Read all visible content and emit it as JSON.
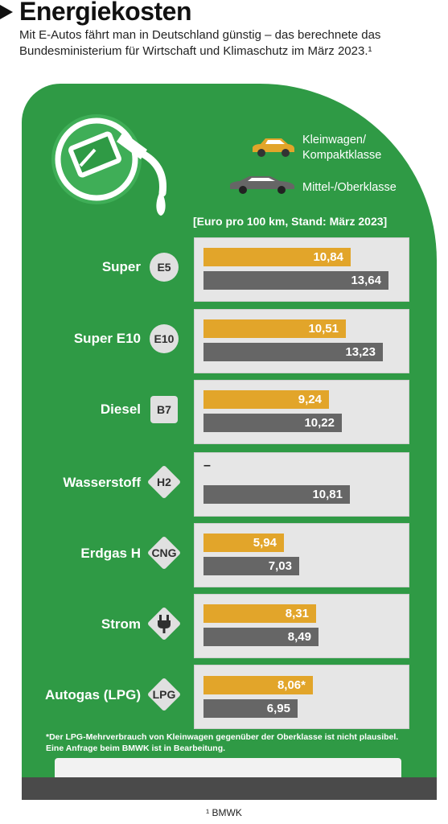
{
  "header": {
    "title": "Energiekosten",
    "subtitle": "Mit E-Autos fährt man in Deutschland günstig – das berechnete das Bundesministerium für Wirtschaft und Klimaschutz im März 2023.¹"
  },
  "legend": {
    "small": "Kleinwagen/ Kompaktklasse",
    "large": "Mittel-/Oberklasse"
  },
  "unit_label": "[Euro pro 100 km, Stand: März 2023]",
  "colors": {
    "small": "#e2a52a",
    "large": "#666666",
    "panel": "#2f9a45"
  },
  "rows": [
    {
      "label": "Super",
      "badge": "E5",
      "small": "10,84",
      "large": "13,64"
    },
    {
      "label": "Super E10",
      "badge": "E10",
      "small": "10,51",
      "large": "13,23"
    },
    {
      "label": "Diesel",
      "badge": "B7",
      "small": "9,24",
      "large": "10,22"
    },
    {
      "label": "Wasserstoff",
      "badge": "H2",
      "small": "–",
      "large": "10,81"
    },
    {
      "label": "Erdgas H",
      "badge": "CNG",
      "small": "5,94",
      "large": "7,03"
    },
    {
      "label": "Strom",
      "badge": "plug-icon",
      "small": "8,31",
      "large": "8,49"
    },
    {
      "label": "Autogas (LPG)",
      "badge": "LPG",
      "small": "8,06*",
      "large": "6,95"
    }
  ],
  "footnote": "*Der LPG-Mehrverbrauch von Kleinwagen gegenüber der Oberklasse ist nicht plausibel. Eine Anfrage beim BMWK ist in Bearbeitung.",
  "source": "¹ BMWK",
  "chart_data": {
    "type": "bar",
    "orientation": "horizontal",
    "title": "Energiekosten",
    "unit": "[Euro pro 100 km, Stand: März 2023]",
    "categories": [
      "Super",
      "Super E10",
      "Diesel",
      "Wasserstoff",
      "Erdgas H",
      "Strom",
      "Autogas (LPG)"
    ],
    "series": [
      {
        "name": "Kleinwagen/ Kompaktklasse",
        "values": [
          10.84,
          10.51,
          9.24,
          null,
          5.94,
          8.31,
          8.06
        ]
      },
      {
        "name": "Mittel-/Oberklasse",
        "values": [
          13.64,
          13.23,
          10.22,
          10.81,
          7.03,
          8.49,
          6.95
        ]
      }
    ],
    "xlim": [
      0,
      14
    ],
    "grid": false,
    "legend_position": "top-right"
  }
}
